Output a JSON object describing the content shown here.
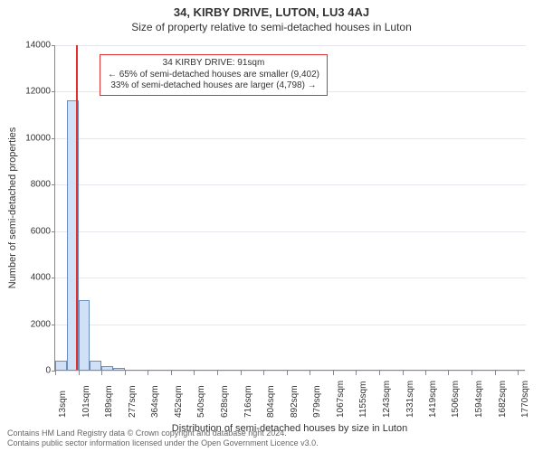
{
  "title_main": "34, KIRBY DRIVE, LUTON, LU3 4AJ",
  "title_sub": "Size of property relative to semi-detached houses in Luton",
  "chart": {
    "type": "histogram",
    "ylabel": "Number of semi-detached properties",
    "xlabel": "Distribution of semi-detached houses by size in Luton",
    "xtick_labels": [
      "13sqm",
      "101sqm",
      "189sqm",
      "277sqm",
      "364sqm",
      "452sqm",
      "540sqm",
      "628sqm",
      "716sqm",
      "804sqm",
      "892sqm",
      "979sqm",
      "1067sqm",
      "1155sqm",
      "1243sqm",
      "1331sqm",
      "1419sqm",
      "1506sqm",
      "1594sqm",
      "1682sqm",
      "1770sqm"
    ],
    "xtick_positions": [
      13,
      101,
      189,
      277,
      364,
      452,
      540,
      628,
      716,
      804,
      892,
      979,
      1067,
      1155,
      1243,
      1331,
      1419,
      1506,
      1594,
      1682,
      1770
    ],
    "ylim": [
      0,
      14000
    ],
    "ytick_step": 2000,
    "grid_color": "#e4e8ee",
    "axis_color": "#888888",
    "background_color": "#ffffff",
    "bar_color_fill": "#cfe0f7",
    "bar_color_stroke": "#6a8fbf",
    "marker_color": "#e03030",
    "bars": [
      {
        "x0": 13,
        "x1": 57,
        "count": 400
      },
      {
        "x0": 57,
        "x1": 101,
        "count": 11600
      },
      {
        "x0": 101,
        "x1": 145,
        "count": 3000
      },
      {
        "x0": 145,
        "x1": 189,
        "count": 400
      },
      {
        "x0": 189,
        "x1": 233,
        "count": 150
      },
      {
        "x0": 233,
        "x1": 277,
        "count": 80
      }
    ],
    "marker_x": 91,
    "xlim": [
      13,
      1800
    ]
  },
  "annotation": {
    "line1": "34 KIRBY DRIVE: 91sqm",
    "line2": "← 65% of semi-detached houses are smaller (9,402)",
    "line3": "33% of semi-detached houses are larger (4,798) →",
    "border_color": "#e03030"
  },
  "footer": {
    "line1": "Contains HM Land Registry data © Crown copyright and database right 2024.",
    "line2": "Contains public sector information licensed under the Open Government Licence v3.0."
  },
  "fontsize": {
    "title_main": 13,
    "title_sub": 12,
    "axis_label": 11,
    "tick": 10,
    "annotation": 10,
    "footer": 9
  }
}
